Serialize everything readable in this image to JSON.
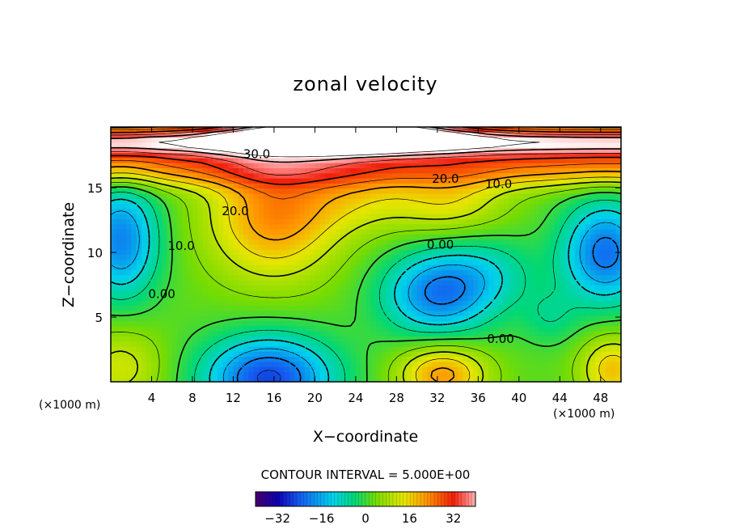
{
  "chart_data": {
    "type": "heatmap",
    "title": "zonal velocity",
    "xlabel": "X−coordinate",
    "ylabel": "Z−coordinate",
    "x_unit": "(×1000 m)",
    "z_unit": "(×1000 m)",
    "xlim": [
      0,
      50
    ],
    "ylim": [
      0,
      19.7
    ],
    "x_ticks": [
      4,
      8,
      12,
      16,
      20,
      24,
      28,
      32,
      36,
      40,
      44,
      48
    ],
    "y_ticks": [
      5,
      10,
      15
    ],
    "x_tick_labels": [
      "4",
      "8",
      "12",
      "16",
      "20",
      "24",
      "28",
      "32",
      "36",
      "40",
      "44",
      "48"
    ],
    "y_tick_labels": [
      "5",
      "10",
      "15"
    ],
    "contour_interval_text": "CONTOUR INTERVAL = 5.000E+00",
    "contour_interval": 5.0,
    "negative_contours": "dashed",
    "colorbar": {
      "range": [
        -40,
        40
      ],
      "ticks": [
        -32,
        -16,
        0,
        16,
        32
      ],
      "tick_labels": [
        "−32",
        "−16",
        "0",
        "16",
        "32"
      ],
      "colormap": "rainbow (purple-blue-cyan-green-yellow-orange-red-white)"
    },
    "contour_labels": [
      {
        "text": "30.0",
        "x": 14.3,
        "y": 17.6,
        "value": 30
      },
      {
        "text": "20.0",
        "x": 32.8,
        "y": 15.7,
        "value": 20
      },
      {
        "text": "10.0",
        "x": 38.0,
        "y": 15.3,
        "value": 10
      },
      {
        "text": "20.0",
        "x": 12.2,
        "y": 13.2,
        "value": 20
      },
      {
        "text": "10.0",
        "x": 6.9,
        "y": 10.5,
        "value": 10
      },
      {
        "text": "0.00",
        "x": 32.3,
        "y": 10.6,
        "value": 0
      },
      {
        "text": "0.00",
        "x": 5.0,
        "y": 6.8,
        "value": 0
      },
      {
        "text": "0.00",
        "x": 38.2,
        "y": 3.3,
        "value": 0
      }
    ],
    "features": [
      {
        "kind": "max",
        "x": 23,
        "y": 19.3,
        "amp": 46,
        "sx": 7,
        "sz": 0.9
      },
      {
        "kind": "band",
        "x": 25,
        "y": 18.6,
        "amp": 38,
        "sx": 40,
        "sz": 0.85
      },
      {
        "kind": "band",
        "x": 25,
        "y": 16.6,
        "amp": 20,
        "sx": 40,
        "sz": 1.1
      },
      {
        "kind": "max",
        "x": 16,
        "y": 13.0,
        "amp": 21,
        "sx": 4.5,
        "sz": 3.5
      },
      {
        "kind": "max",
        "x": 24,
        "y": 14.5,
        "amp": 9,
        "sx": 4.0,
        "sz": 2.0
      },
      {
        "kind": "max",
        "x": 33,
        "y": 14.0,
        "amp": 12,
        "sx": 4.0,
        "sz": 1.8
      },
      {
        "kind": "min",
        "x": 1.0,
        "y": 11.0,
        "amp": -22,
        "sx": 2.6,
        "sz": 3.2
      },
      {
        "kind": "min",
        "x": 15.5,
        "y": 0.3,
        "amp": -28,
        "sx": 4.5,
        "sz": 2.3
      },
      {
        "kind": "min",
        "x": 32.0,
        "y": 6.8,
        "amp": -22,
        "sx": 3.8,
        "sz": 2.3
      },
      {
        "kind": "min",
        "x": 48.5,
        "y": 10.0,
        "amp": -24,
        "sx": 3.0,
        "sz": 2.8
      },
      {
        "kind": "min",
        "x": 37.0,
        "y": 8.5,
        "amp": -8,
        "sx": 3.5,
        "sz": 2.0
      },
      {
        "kind": "max",
        "x": 32.5,
        "y": 0.6,
        "amp": 20,
        "sx": 3.0,
        "sz": 1.6
      },
      {
        "kind": "max",
        "x": 49.2,
        "y": 1.0,
        "amp": 16,
        "sx": 2.2,
        "sz": 1.8
      },
      {
        "kind": "max",
        "x": 1.0,
        "y": 1.2,
        "amp": 10,
        "sx": 3.0,
        "sz": 2.2
      },
      {
        "kind": "min",
        "x": 43.0,
        "y": 5.0,
        "amp": -6,
        "sx": 2.0,
        "sz": 1.5
      }
    ]
  }
}
